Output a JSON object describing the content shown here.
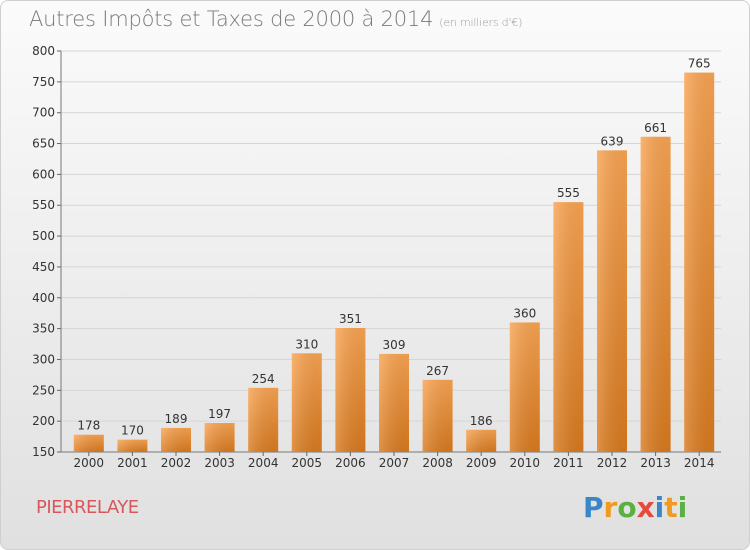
{
  "header": {
    "title": "Autres Impôts et Taxes de 2000 à 2014",
    "unit": "(en milliers d'€)"
  },
  "footer": {
    "location": "PIERRELAYE",
    "brand": "Proxiti"
  },
  "colors": {
    "bar_light": "#F9A452",
    "bar_dark": "#D97A1E",
    "grid": "#d5d5d5",
    "axis_text": "#333333",
    "location_text": "#D9565D"
  },
  "chart_data": {
    "type": "bar",
    "title": "Autres Impôts et Taxes de 2000 à 2014",
    "subtitle": "(en milliers d'€)",
    "categories": [
      "2000",
      "2001",
      "2002",
      "2003",
      "2004",
      "2005",
      "2006",
      "2007",
      "2008",
      "2009",
      "2010",
      "2011",
      "2012",
      "2013",
      "2014"
    ],
    "values": [
      178,
      170,
      189,
      197,
      254,
      310,
      351,
      309,
      267,
      186,
      360,
      555,
      639,
      661,
      765
    ],
    "ylim": [
      150,
      800
    ],
    "yticks": [
      150,
      200,
      250,
      300,
      350,
      400,
      450,
      500,
      550,
      600,
      650,
      700,
      750,
      800
    ],
    "grid": true,
    "xlabel": "",
    "ylabel": ""
  }
}
